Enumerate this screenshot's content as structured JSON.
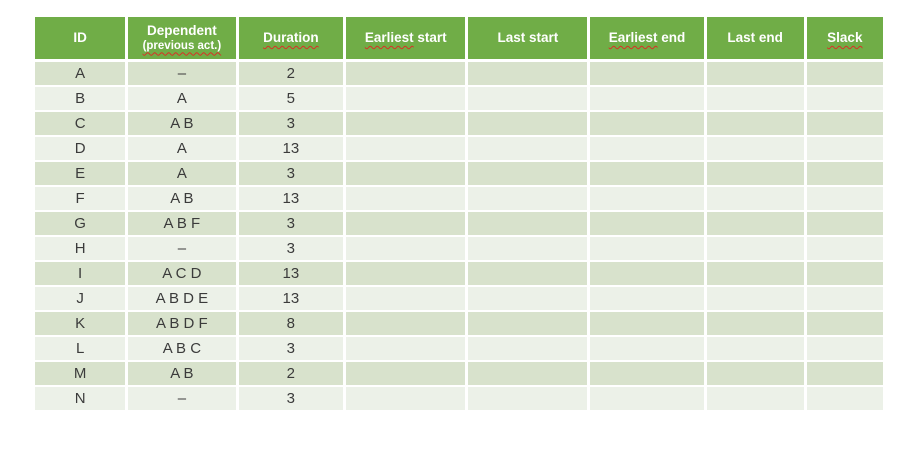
{
  "colors": {
    "page_bg": "#FFFFFF",
    "header_bg": "#70AD47",
    "header_text": "#FFFFFF",
    "row_odd_bg": "#D8E2CC",
    "row_even_bg": "#ECF1E8",
    "body_text": "#3B3B3B",
    "separator": "#FFFFFF",
    "squiggle": "#D93025"
  },
  "table": {
    "columns": [
      {
        "key": "id",
        "width_pct": 11.0,
        "segments": [
          {
            "text": "ID",
            "misspelled": false
          }
        ]
      },
      {
        "key": "dependent",
        "width_pct": 13.0,
        "segments": [
          {
            "text": "Dependent",
            "misspelled": false
          }
        ],
        "sub_segments": [
          {
            "text": "(previous act.)",
            "misspelled": true
          }
        ]
      },
      {
        "key": "duration",
        "width_pct": 12.7,
        "segments": [
          {
            "text": "Duration",
            "misspelled": true
          }
        ]
      },
      {
        "key": "earliest_start",
        "width_pct": 14.4,
        "segments": [
          {
            "text": "Earliest",
            "misspelled": true
          },
          {
            "text": " start",
            "misspelled": false
          }
        ]
      },
      {
        "key": "last_start",
        "width_pct": 14.4,
        "segments": [
          {
            "text": "Last start",
            "misspelled": false
          }
        ]
      },
      {
        "key": "earliest_end",
        "width_pct": 13.7,
        "segments": [
          {
            "text": "Earliest",
            "misspelled": true
          },
          {
            "text": " end",
            "misspelled": false
          }
        ]
      },
      {
        "key": "last_end",
        "width_pct": 11.8,
        "segments": [
          {
            "text": "Last end",
            "misspelled": false
          }
        ]
      },
      {
        "key": "slack",
        "width_pct": 9.0,
        "segments": [
          {
            "text": "Slack",
            "misspelled": true
          }
        ]
      }
    ],
    "rows": [
      {
        "id": "A",
        "dependent": "–",
        "duration": "2",
        "earliest_start": "",
        "last_start": "",
        "earliest_end": "",
        "last_end": "",
        "slack": ""
      },
      {
        "id": "B",
        "dependent": "A",
        "duration": "5",
        "earliest_start": "",
        "last_start": "",
        "earliest_end": "",
        "last_end": "",
        "slack": ""
      },
      {
        "id": "C",
        "dependent": "A B",
        "duration": "3",
        "earliest_start": "",
        "last_start": "",
        "earliest_end": "",
        "last_end": "",
        "slack": ""
      },
      {
        "id": "D",
        "dependent": "A",
        "duration": "13",
        "earliest_start": "",
        "last_start": "",
        "earliest_end": "",
        "last_end": "",
        "slack": ""
      },
      {
        "id": "E",
        "dependent": "A",
        "duration": "3",
        "earliest_start": "",
        "last_start": "",
        "earliest_end": "",
        "last_end": "",
        "slack": ""
      },
      {
        "id": "F",
        "dependent": "A B",
        "duration": "13",
        "earliest_start": "",
        "last_start": "",
        "earliest_end": "",
        "last_end": "",
        "slack": ""
      },
      {
        "id": "G",
        "dependent": "A B F",
        "duration": "3",
        "earliest_start": "",
        "last_start": "",
        "earliest_end": "",
        "last_end": "",
        "slack": ""
      },
      {
        "id": "H",
        "dependent": "–",
        "duration": "3",
        "earliest_start": "",
        "last_start": "",
        "earliest_end": "",
        "last_end": "",
        "slack": ""
      },
      {
        "id": "I",
        "dependent": "A C D",
        "duration": "13",
        "earliest_start": "",
        "last_start": "",
        "earliest_end": "",
        "last_end": "",
        "slack": ""
      },
      {
        "id": "J",
        "dependent": "A B D E",
        "duration": "13",
        "earliest_start": "",
        "last_start": "",
        "earliest_end": "",
        "last_end": "",
        "slack": ""
      },
      {
        "id": "K",
        "dependent": "A B D F",
        "duration": "8",
        "earliest_start": "",
        "last_start": "",
        "earliest_end": "",
        "last_end": "",
        "slack": ""
      },
      {
        "id": "L",
        "dependent": "A B C",
        "duration": "3",
        "earliest_start": "",
        "last_start": "",
        "earliest_end": "",
        "last_end": "",
        "slack": ""
      },
      {
        "id": "M",
        "dependent": "A B",
        "duration": "2",
        "earliest_start": "",
        "last_start": "",
        "earliest_end": "",
        "last_end": "",
        "slack": ""
      },
      {
        "id": "N",
        "dependent": "–",
        "duration": "3",
        "earliest_start": "",
        "last_start": "",
        "earliest_end": "",
        "last_end": "",
        "slack": ""
      }
    ]
  }
}
